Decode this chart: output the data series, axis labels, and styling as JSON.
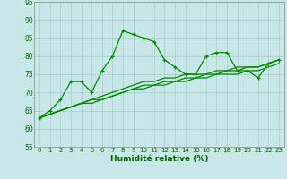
{
  "xlabel": "Humidité relative (%)",
  "background_color": "#c8e8e8",
  "plot_bg_color": "#c8e8e8",
  "grid_color": "#aacccc",
  "line_color": "#008800",
  "xlim": [
    -0.5,
    23.5
  ],
  "ylim": [
    55,
    95
  ],
  "xticks": [
    0,
    1,
    2,
    3,
    4,
    5,
    6,
    7,
    8,
    9,
    10,
    11,
    12,
    13,
    14,
    15,
    16,
    17,
    18,
    19,
    20,
    21,
    22,
    23
  ],
  "yticks": [
    55,
    60,
    65,
    70,
    75,
    80,
    85,
    90,
    95
  ],
  "line_main": [
    63,
    65,
    68,
    73,
    73,
    70,
    76,
    80,
    87,
    86,
    85,
    84,
    79,
    77,
    75,
    75,
    80,
    81,
    81,
    76,
    76,
    74,
    78,
    79
  ],
  "line_reg1": [
    63,
    64,
    65,
    66,
    67,
    67,
    68,
    69,
    70,
    71,
    71,
    72,
    72,
    73,
    73,
    74,
    74,
    75,
    75,
    75,
    76,
    76,
    77,
    78
  ],
  "line_reg2": [
    63,
    64,
    65,
    66,
    67,
    68,
    68,
    69,
    70,
    71,
    72,
    72,
    73,
    73,
    74,
    74,
    75,
    75,
    76,
    76,
    77,
    77,
    78,
    79
  ],
  "line_reg3": [
    63,
    64,
    65,
    66,
    67,
    68,
    69,
    70,
    71,
    72,
    73,
    73,
    74,
    74,
    75,
    75,
    75,
    76,
    76,
    77,
    77,
    77,
    78,
    79
  ]
}
